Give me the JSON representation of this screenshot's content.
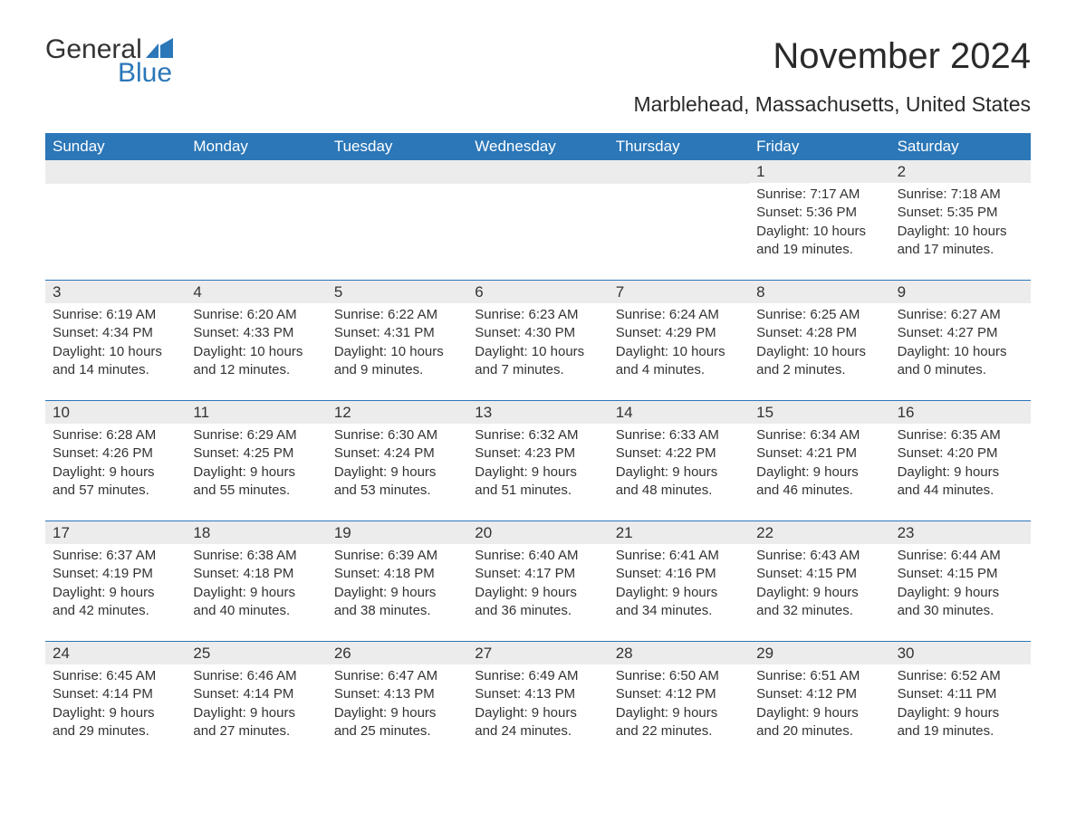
{
  "logo": {
    "word1": "General",
    "word2": "Blue",
    "text_color": "#333333",
    "accent_color": "#2b77b8"
  },
  "title": "November 2024",
  "subtitle": "Marblehead, Massachusetts, United States",
  "colors": {
    "header_bg": "#2b77b8",
    "header_text": "#ffffff",
    "day_bar_bg": "#ececec",
    "body_text": "#333333",
    "row_border": "#2b77b8",
    "page_bg": "#ffffff"
  },
  "typography": {
    "title_fontsize": 40,
    "subtitle_fontsize": 23,
    "weekday_fontsize": 17,
    "daynum_fontsize": 17,
    "body_fontsize": 15
  },
  "weekdays": [
    "Sunday",
    "Monday",
    "Tuesday",
    "Wednesday",
    "Thursday",
    "Friday",
    "Saturday"
  ],
  "weeks": [
    [
      null,
      null,
      null,
      null,
      null,
      {
        "n": "1",
        "sunrise": "Sunrise: 7:17 AM",
        "sunset": "Sunset: 5:36 PM",
        "daylight": "Daylight: 10 hours and 19 minutes."
      },
      {
        "n": "2",
        "sunrise": "Sunrise: 7:18 AM",
        "sunset": "Sunset: 5:35 PM",
        "daylight": "Daylight: 10 hours and 17 minutes."
      }
    ],
    [
      {
        "n": "3",
        "sunrise": "Sunrise: 6:19 AM",
        "sunset": "Sunset: 4:34 PM",
        "daylight": "Daylight: 10 hours and 14 minutes."
      },
      {
        "n": "4",
        "sunrise": "Sunrise: 6:20 AM",
        "sunset": "Sunset: 4:33 PM",
        "daylight": "Daylight: 10 hours and 12 minutes."
      },
      {
        "n": "5",
        "sunrise": "Sunrise: 6:22 AM",
        "sunset": "Sunset: 4:31 PM",
        "daylight": "Daylight: 10 hours and 9 minutes."
      },
      {
        "n": "6",
        "sunrise": "Sunrise: 6:23 AM",
        "sunset": "Sunset: 4:30 PM",
        "daylight": "Daylight: 10 hours and 7 minutes."
      },
      {
        "n": "7",
        "sunrise": "Sunrise: 6:24 AM",
        "sunset": "Sunset: 4:29 PM",
        "daylight": "Daylight: 10 hours and 4 minutes."
      },
      {
        "n": "8",
        "sunrise": "Sunrise: 6:25 AM",
        "sunset": "Sunset: 4:28 PM",
        "daylight": "Daylight: 10 hours and 2 minutes."
      },
      {
        "n": "9",
        "sunrise": "Sunrise: 6:27 AM",
        "sunset": "Sunset: 4:27 PM",
        "daylight": "Daylight: 10 hours and 0 minutes."
      }
    ],
    [
      {
        "n": "10",
        "sunrise": "Sunrise: 6:28 AM",
        "sunset": "Sunset: 4:26 PM",
        "daylight": "Daylight: 9 hours and 57 minutes."
      },
      {
        "n": "11",
        "sunrise": "Sunrise: 6:29 AM",
        "sunset": "Sunset: 4:25 PM",
        "daylight": "Daylight: 9 hours and 55 minutes."
      },
      {
        "n": "12",
        "sunrise": "Sunrise: 6:30 AM",
        "sunset": "Sunset: 4:24 PM",
        "daylight": "Daylight: 9 hours and 53 minutes."
      },
      {
        "n": "13",
        "sunrise": "Sunrise: 6:32 AM",
        "sunset": "Sunset: 4:23 PM",
        "daylight": "Daylight: 9 hours and 51 minutes."
      },
      {
        "n": "14",
        "sunrise": "Sunrise: 6:33 AM",
        "sunset": "Sunset: 4:22 PM",
        "daylight": "Daylight: 9 hours and 48 minutes."
      },
      {
        "n": "15",
        "sunrise": "Sunrise: 6:34 AM",
        "sunset": "Sunset: 4:21 PM",
        "daylight": "Daylight: 9 hours and 46 minutes."
      },
      {
        "n": "16",
        "sunrise": "Sunrise: 6:35 AM",
        "sunset": "Sunset: 4:20 PM",
        "daylight": "Daylight: 9 hours and 44 minutes."
      }
    ],
    [
      {
        "n": "17",
        "sunrise": "Sunrise: 6:37 AM",
        "sunset": "Sunset: 4:19 PM",
        "daylight": "Daylight: 9 hours and 42 minutes."
      },
      {
        "n": "18",
        "sunrise": "Sunrise: 6:38 AM",
        "sunset": "Sunset: 4:18 PM",
        "daylight": "Daylight: 9 hours and 40 minutes."
      },
      {
        "n": "19",
        "sunrise": "Sunrise: 6:39 AM",
        "sunset": "Sunset: 4:18 PM",
        "daylight": "Daylight: 9 hours and 38 minutes."
      },
      {
        "n": "20",
        "sunrise": "Sunrise: 6:40 AM",
        "sunset": "Sunset: 4:17 PM",
        "daylight": "Daylight: 9 hours and 36 minutes."
      },
      {
        "n": "21",
        "sunrise": "Sunrise: 6:41 AM",
        "sunset": "Sunset: 4:16 PM",
        "daylight": "Daylight: 9 hours and 34 minutes."
      },
      {
        "n": "22",
        "sunrise": "Sunrise: 6:43 AM",
        "sunset": "Sunset: 4:15 PM",
        "daylight": "Daylight: 9 hours and 32 minutes."
      },
      {
        "n": "23",
        "sunrise": "Sunrise: 6:44 AM",
        "sunset": "Sunset: 4:15 PM",
        "daylight": "Daylight: 9 hours and 30 minutes."
      }
    ],
    [
      {
        "n": "24",
        "sunrise": "Sunrise: 6:45 AM",
        "sunset": "Sunset: 4:14 PM",
        "daylight": "Daylight: 9 hours and 29 minutes."
      },
      {
        "n": "25",
        "sunrise": "Sunrise: 6:46 AM",
        "sunset": "Sunset: 4:14 PM",
        "daylight": "Daylight: 9 hours and 27 minutes."
      },
      {
        "n": "26",
        "sunrise": "Sunrise: 6:47 AM",
        "sunset": "Sunset: 4:13 PM",
        "daylight": "Daylight: 9 hours and 25 minutes."
      },
      {
        "n": "27",
        "sunrise": "Sunrise: 6:49 AM",
        "sunset": "Sunset: 4:13 PM",
        "daylight": "Daylight: 9 hours and 24 minutes."
      },
      {
        "n": "28",
        "sunrise": "Sunrise: 6:50 AM",
        "sunset": "Sunset: 4:12 PM",
        "daylight": "Daylight: 9 hours and 22 minutes."
      },
      {
        "n": "29",
        "sunrise": "Sunrise: 6:51 AM",
        "sunset": "Sunset: 4:12 PM",
        "daylight": "Daylight: 9 hours and 20 minutes."
      },
      {
        "n": "30",
        "sunrise": "Sunrise: 6:52 AM",
        "sunset": "Sunset: 4:11 PM",
        "daylight": "Daylight: 9 hours and 19 minutes."
      }
    ]
  ]
}
